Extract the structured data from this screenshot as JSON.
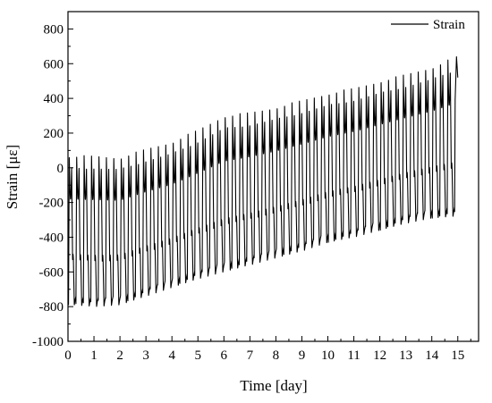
{
  "chart_data": {
    "type": "line",
    "title": "",
    "xlabel": "Time [day]",
    "ylabel": "Strain [με]",
    "xlim": [
      0,
      15.8
    ],
    "ylim": [
      -1000,
      900
    ],
    "xticks": [
      0,
      1,
      2,
      3,
      4,
      5,
      6,
      7,
      8,
      9,
      10,
      11,
      12,
      13,
      14,
      15
    ],
    "yticks": [
      -1000,
      -800,
      -600,
      -400,
      -200,
      0,
      200,
      400,
      600,
      800
    ],
    "grid": false,
    "legend": {
      "position": "top-right",
      "entries": [
        "Strain"
      ]
    },
    "series": [
      {
        "name": "Strain",
        "color": "#000000",
        "cycles_per_day": 3.5,
        "description_points": {
          "peak_envelope": [
            [
              0.2,
              70
            ],
            [
              1.0,
              70
            ],
            [
              2.0,
              60
            ],
            [
              3.0,
              110
            ],
            [
              4.0,
              150
            ],
            [
              5.0,
              220
            ],
            [
              6.0,
              300
            ],
            [
              7.0,
              320
            ],
            [
              8.0,
              350
            ],
            [
              9.0,
              390
            ],
            [
              10.0,
              430
            ],
            [
              11.0,
              460
            ],
            [
              12.0,
              500
            ],
            [
              13.0,
              540
            ],
            [
              14.0,
              580
            ],
            [
              14.9,
              640
            ]
          ],
          "trough_envelope": [
            [
              0.2,
              -790
            ],
            [
              1.0,
              -800
            ],
            [
              2.0,
              -790
            ],
            [
              3.0,
              -740
            ],
            [
              4.0,
              -690
            ],
            [
              5.0,
              -640
            ],
            [
              6.0,
              -600
            ],
            [
              7.0,
              -560
            ],
            [
              8.0,
              -520
            ],
            [
              9.0,
              -480
            ],
            [
              10.0,
              -430
            ],
            [
              11.0,
              -400
            ],
            [
              12.0,
              -360
            ],
            [
              13.0,
              -320
            ],
            [
              14.0,
              -290
            ],
            [
              14.9,
              -280
            ]
          ],
          "end_point": [
            15.0,
            520
          ]
        }
      }
    ]
  }
}
